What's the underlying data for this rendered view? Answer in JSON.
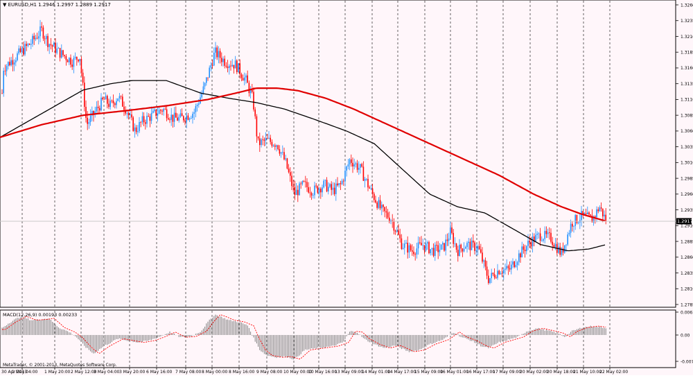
{
  "chart_header": {
    "symbol_label": "EURUSD,H1",
    "ohlc": "1.2946 1.2997 1.2889 1.2917"
  },
  "price_axis": {
    "ticks": [
      "1.3260",
      "1.3235",
      "1.3210",
      "1.3185",
      "1.3160",
      "1.3135",
      "1.3110",
      "1.3085",
      "1.3060",
      "1.3035",
      "1.3010",
      "1.2985",
      "1.2960",
      "1.2935",
      "1.2910",
      "1.2885",
      "1.2860",
      "1.2835",
      "1.2810",
      "1.2785"
    ],
    "current_price": "1.2917"
  },
  "macd": {
    "title": "MACD(12,26,9) 0.00193 0.00233",
    "ticks": [
      "0.00615",
      "0.00",
      "-0.00708"
    ]
  },
  "time_axis": {
    "labels": [
      "30 Apr 2013",
      "1 May 04:00",
      "1 May 20:00",
      "2 May 12:00",
      "3 May 04:00",
      "3 May 20:00",
      "6 May 16:00",
      "7 May 08:00",
      "8 May 00:00",
      "8 May 16:00",
      "9 May 08:00",
      "10 May 00:00",
      "10 May 16:00",
      "13 May 09:00",
      "14 May 01:00",
      "14 May 17:00",
      "15 May 09:00",
      "16 May 01:00",
      "16 May 17:00",
      "17 May 09:00",
      "20 May 02:00",
      "20 May 18:00",
      "21 May 10:00",
      "22 May 02:00"
    ]
  },
  "copyright": "MetaTrader, © 2001-2013, MetaQuotes Software Corp.",
  "colors": {
    "background": "#fff6fa",
    "bull_candle": "#1e90ff",
    "bear_candle": "#ff0000",
    "ma_slow": "#e00000",
    "ma_fast": "#000000",
    "macd_hist": "#808080",
    "macd_signal": "#ff0000"
  },
  "chart_data": {
    "type": "candlestick",
    "symbol": "EURUSD",
    "timeframe": "H1",
    "ylim": [
      1.2775,
      1.327
    ],
    "price_path": [
      [
        0,
        1.306
      ],
      [
        5,
        1.316
      ],
      [
        25,
        1.318
      ],
      [
        45,
        1.32
      ],
      [
        60,
        1.322
      ],
      [
        70,
        1.32
      ],
      [
        85,
        1.3185
      ],
      [
        105,
        1.317
      ],
      [
        115,
        1.318
      ],
      [
        125,
        1.307
      ],
      [
        140,
        1.3095
      ],
      [
        150,
        1.311
      ],
      [
        160,
        1.31
      ],
      [
        170,
        1.3115
      ],
      [
        182,
        1.3095
      ],
      [
        195,
        1.306
      ],
      [
        205,
        1.3075
      ],
      [
        220,
        1.3085
      ],
      [
        235,
        1.3095
      ],
      [
        250,
        1.308
      ],
      [
        262,
        1.308
      ],
      [
        280,
        1.309
      ],
      [
        295,
        1.313
      ],
      [
        310,
        1.3185
      ],
      [
        325,
        1.317
      ],
      [
        340,
        1.3165
      ],
      [
        355,
        1.314
      ],
      [
        365,
        1.311
      ],
      [
        372,
        1.304
      ],
      [
        385,
        1.3045
      ],
      [
        400,
        1.304
      ],
      [
        412,
        1.301
      ],
      [
        425,
        1.296
      ],
      [
        438,
        1.2975
      ],
      [
        452,
        1.2965
      ],
      [
        468,
        1.2975
      ],
      [
        480,
        1.2965
      ],
      [
        492,
        1.2975
      ],
      [
        505,
        1.3015
      ],
      [
        520,
        1.3
      ],
      [
        535,
        1.2965
      ],
      [
        550,
        1.2935
      ],
      [
        565,
        1.292
      ],
      [
        580,
        1.288
      ],
      [
        595,
        1.287
      ],
      [
        610,
        1.288
      ],
      [
        625,
        1.287
      ],
      [
        640,
        1.2875
      ],
      [
        650,
        1.29
      ],
      [
        660,
        1.287
      ],
      [
        672,
        1.288
      ],
      [
        690,
        1.2875
      ],
      [
        705,
        1.2825
      ],
      [
        720,
        1.284
      ],
      [
        735,
        1.284
      ],
      [
        750,
        1.2865
      ],
      [
        765,
        1.2885
      ],
      [
        780,
        1.2895
      ],
      [
        795,
        1.289
      ],
      [
        810,
        1.2865
      ],
      [
        825,
        1.2915
      ],
      [
        840,
        1.2925
      ],
      [
        855,
        1.292
      ],
      [
        865,
        1.294
      ],
      [
        875,
        1.2917
      ]
    ],
    "ma_slow_path": [
      [
        0,
        1.305
      ],
      [
        60,
        1.307
      ],
      [
        120,
        1.3085
      ],
      [
        180,
        1.3092
      ],
      [
        240,
        1.31
      ],
      [
        300,
        1.311
      ],
      [
        340,
        1.312
      ],
      [
        370,
        1.3128
      ],
      [
        400,
        1.3128
      ],
      [
        430,
        1.3124
      ],
      [
        470,
        1.3112
      ],
      [
        510,
        1.3095
      ],
      [
        550,
        1.3075
      ],
      [
        600,
        1.305
      ],
      [
        660,
        1.302
      ],
      [
        720,
        1.299
      ],
      [
        770,
        1.296
      ],
      [
        810,
        1.294
      ],
      [
        840,
        1.2928
      ],
      [
        875,
        1.2917
      ]
    ],
    "ma_fast_path": [
      [
        0,
        1.305
      ],
      [
        40,
        1.3075
      ],
      [
        80,
        1.31
      ],
      [
        120,
        1.3125
      ],
      [
        160,
        1.3135
      ],
      [
        190,
        1.314
      ],
      [
        240,
        1.314
      ],
      [
        290,
        1.312
      ],
      [
        330,
        1.3112
      ],
      [
        370,
        1.3105
      ],
      [
        410,
        1.3095
      ],
      [
        450,
        1.308
      ],
      [
        500,
        1.306
      ],
      [
        540,
        1.304
      ],
      [
        580,
        1.3
      ],
      [
        620,
        1.296
      ],
      [
        660,
        1.294
      ],
      [
        700,
        1.293
      ],
      [
        740,
        1.2905
      ],
      [
        780,
        1.288
      ],
      [
        820,
        1.287
      ],
      [
        850,
        1.2873
      ],
      [
        875,
        1.288
      ]
    ],
    "macd_ylim": [
      -0.00708,
      0.00615
    ],
    "macd_hist_path": [
      [
        0,
        0.0015
      ],
      [
        15,
        0.0035
      ],
      [
        30,
        0.005
      ],
      [
        45,
        0.004
      ],
      [
        60,
        0.0042
      ],
      [
        70,
        0.0045
      ],
      [
        85,
        0.002
      ],
      [
        100,
        0.0008
      ],
      [
        110,
        -0.0005
      ],
      [
        125,
        -0.0035
      ],
      [
        135,
        -0.005
      ],
      [
        150,
        -0.003
      ],
      [
        170,
        -0.001
      ],
      [
        185,
        -0.0015
      ],
      [
        200,
        -0.002
      ],
      [
        215,
        -0.0015
      ],
      [
        230,
        -0.0005
      ],
      [
        245,
        0.0008
      ],
      [
        260,
        -0.0006
      ],
      [
        275,
        -0.0004
      ],
      [
        290,
        0.001
      ],
      [
        300,
        0.0035
      ],
      [
        310,
        0.0055
      ],
      [
        320,
        0.0048
      ],
      [
        330,
        0.004
      ],
      [
        345,
        0.0035
      ],
      [
        358,
        0.0025
      ],
      [
        365,
        -0.0005
      ],
      [
        375,
        -0.004
      ],
      [
        385,
        -0.0055
      ],
      [
        400,
        -0.006
      ],
      [
        412,
        -0.0058
      ],
      [
        425,
        -0.0065
      ],
      [
        440,
        -0.004
      ],
      [
        460,
        -0.0035
      ],
      [
        480,
        -0.003
      ],
      [
        495,
        -0.002
      ],
      [
        505,
        0.001
      ],
      [
        515,
        0.0008
      ],
      [
        525,
        -0.001
      ],
      [
        540,
        -0.0025
      ],
      [
        555,
        -0.0035
      ],
      [
        570,
        -0.0028
      ],
      [
        590,
        -0.0045
      ],
      [
        605,
        -0.004
      ],
      [
        620,
        -0.0025
      ],
      [
        640,
        -0.0012
      ],
      [
        655,
        0.0008
      ],
      [
        665,
        -0.0005
      ],
      [
        680,
        -0.0015
      ],
      [
        695,
        -0.003
      ],
      [
        705,
        -0.0035
      ],
      [
        720,
        -0.002
      ],
      [
        735,
        -0.0012
      ],
      [
        748,
        -0.0005
      ],
      [
        760,
        0.001
      ],
      [
        775,
        0.0018
      ],
      [
        790,
        0.0012
      ],
      [
        805,
        0.0005
      ],
      [
        815,
        -0.0005
      ],
      [
        825,
        0.001
      ],
      [
        840,
        0.002
      ],
      [
        855,
        0.0024
      ],
      [
        875,
        0.0019
      ]
    ],
    "markers": {
      "x": [
        32,
        79,
        117,
        150,
        187,
        226,
        268,
        306,
        345,
        385,
        424,
        460,
        498,
        537,
        574,
        613,
        650,
        688,
        726,
        765,
        804,
        842,
        880
      ],
      "labels": [
        "1 May 04:00",
        "1 May 20:00",
        "2 May 12:00",
        "3 May 04:00",
        "3 May 20:00",
        "6 May 16:00",
        "7 May 08:00",
        "8 May 00:00",
        "8 May 16:00",
        "9 May 08:00",
        "10 May 00:00",
        "10 May 16:00",
        "13 May 09:00",
        "14 May 01:00",
        "14 May 17:00",
        "15 May 09:00",
        "16 May 01:00",
        "16 May 17:00",
        "17 May 09:00",
        "20 May 02:00",
        "20 May 18:00",
        "21 May 10:00",
        "22 May 02:00"
      ]
    }
  }
}
